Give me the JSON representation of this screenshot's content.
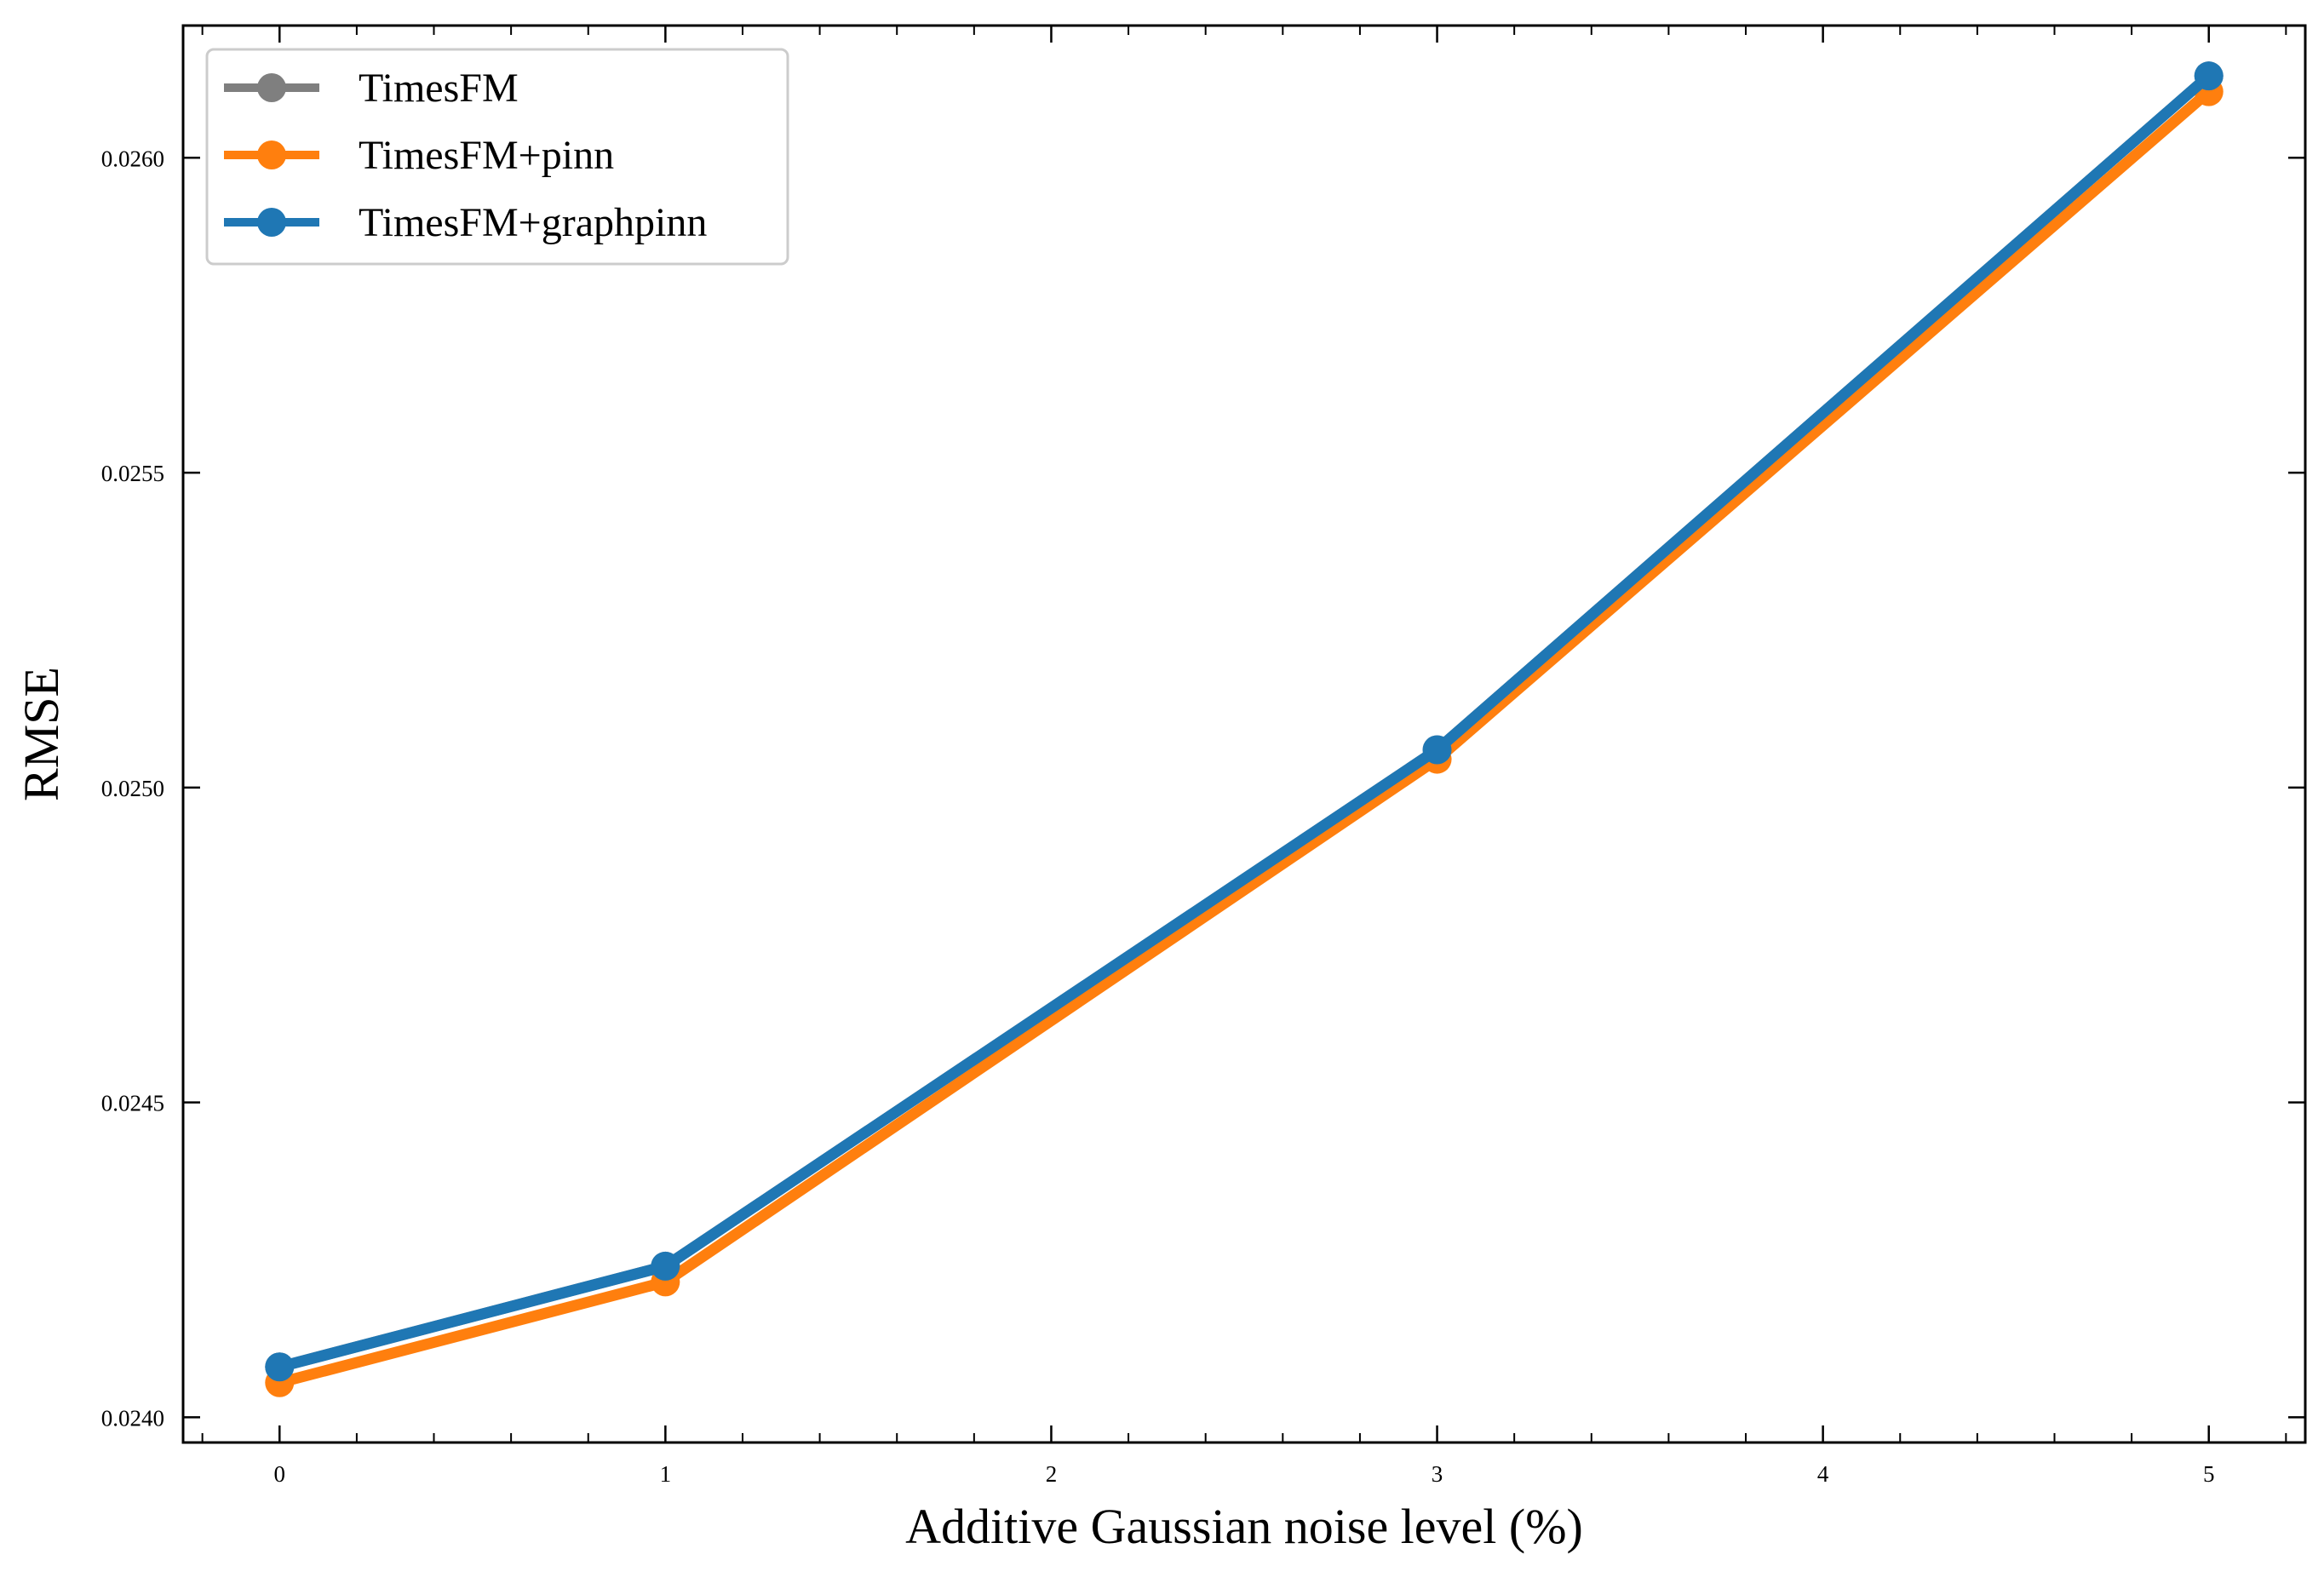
{
  "chart_data": {
    "type": "line",
    "xlabel": "Additive Gaussian noise level (%)",
    "ylabel": "RMSE",
    "xlim": [
      -0.25,
      5.25
    ],
    "ylim": [
      0.02396,
      0.02621
    ],
    "x_ticks": [
      0,
      1,
      2,
      3,
      4,
      5
    ],
    "x_tick_labels": [
      "0",
      "1",
      "2",
      "3",
      "4",
      "5"
    ],
    "y_ticks": [
      0.024,
      0.0245,
      0.025,
      0.0255,
      0.026
    ],
    "y_tick_labels": [
      "0.0240",
      "0.0245",
      "0.0250",
      "0.0255",
      "0.0260"
    ],
    "grid": false,
    "legend_position": "top-left",
    "x": [
      0,
      1,
      3,
      5
    ],
    "series": [
      {
        "name": "TimesFM",
        "color": "#7f7f7f",
        "values": [
          0.02408,
          0.02424,
          0.02506,
          0.02613
        ]
      },
      {
        "name": "TimesFM+pinn",
        "color": "#ff7f0e",
        "values": [
          0.024055,
          0.024215,
          0.025045,
          0.026105
        ]
      },
      {
        "name": "TimesFM+graphpinn",
        "color": "#1f77b4",
        "values": [
          0.02408,
          0.02424,
          0.02506,
          0.02613
        ]
      }
    ]
  }
}
